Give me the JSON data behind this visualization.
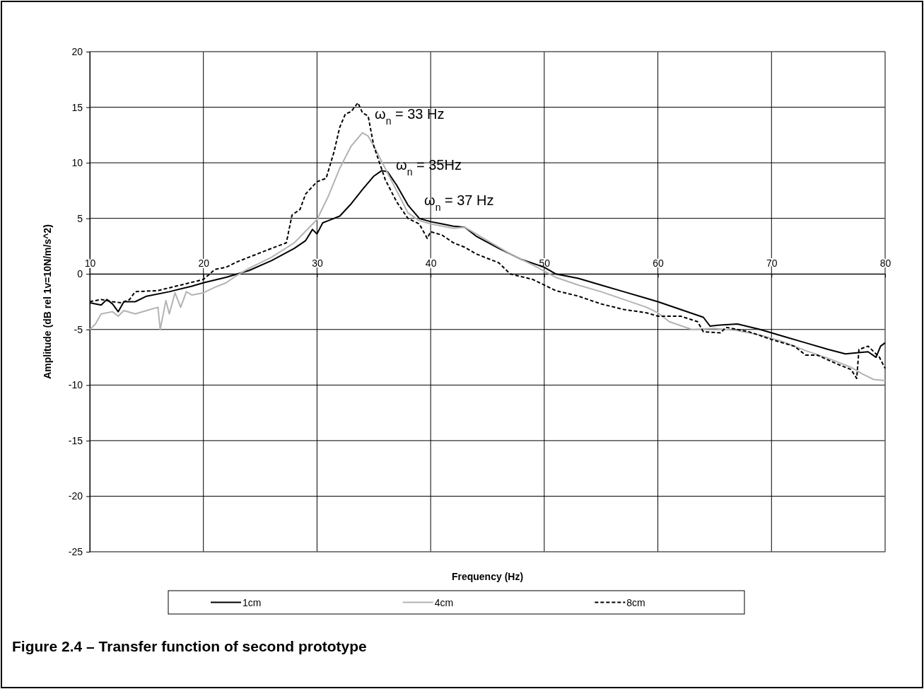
{
  "chart_data": {
    "type": "line",
    "title": "Figure 2.4 – Transfer function of second prototype",
    "xlabel": "Frequency (Hz)",
    "ylabel": "Amplitude (dB rel 1v=10N/m/s^2)",
    "xlim": [
      10,
      80
    ],
    "xticks": [
      10,
      20,
      30,
      40,
      50,
      60,
      70,
      80
    ],
    "ylim": [
      -25,
      20
    ],
    "yticks": [
      -25,
      -20,
      -15,
      -10,
      -5,
      0,
      5,
      10,
      15,
      20
    ],
    "grid": true,
    "legend": "bottom",
    "annotations": [
      "ω$_{n}$ = 33 Hz",
      "ω$_{n}$ = 35Hz",
      "ω$_{n}$ = 37 Hz"
    ],
    "series": [
      {
        "name": "1cm",
        "color": "#000000",
        "line_style": "solid",
        "x": [
          10,
          11,
          11.5,
          12,
          12.5,
          13,
          14,
          15,
          17,
          19,
          20,
          22,
          24,
          26,
          28,
          29,
          29.6,
          30,
          30.5,
          31,
          32,
          33,
          34,
          35,
          35.7,
          36.2,
          37,
          38,
          39,
          40,
          41,
          42,
          43,
          44,
          46,
          48,
          50,
          51,
          53,
          55,
          57,
          59,
          60,
          62,
          64,
          64.6,
          65.5,
          67,
          69,
          71,
          73,
          75,
          76.5,
          78.5,
          79.2,
          79.6,
          80
        ],
        "values": [
          -2.6,
          -2.8,
          -2.3,
          -2.7,
          -3.4,
          -2.5,
          -2.5,
          -2,
          -1.6,
          -1.1,
          -0.8,
          -0.3,
          0.3,
          1.2,
          2.3,
          3,
          4,
          3.6,
          4.6,
          4.8,
          5.2,
          6.3,
          7.6,
          8.8,
          9.3,
          9.2,
          8,
          6.2,
          5,
          4.7,
          4.5,
          4.3,
          4.2,
          3.4,
          2.3,
          1.3,
          0.6,
          0,
          -0.4,
          -1,
          -1.6,
          -2.2,
          -2.5,
          -3.2,
          -3.9,
          -4.7,
          -4.6,
          -4.5,
          -5,
          -5.6,
          -6.2,
          -6.8,
          -7.2,
          -7,
          -7.5,
          -6.5,
          -6.2
        ]
      },
      {
        "name": "4cm",
        "color": "#b3b3b3",
        "line_style": "solid",
        "x": [
          10,
          10.5,
          11,
          12,
          12.5,
          13,
          14,
          15,
          16,
          16.2,
          16.7,
          17,
          17.5,
          18,
          18.5,
          19,
          20,
          21,
          22,
          23,
          24,
          26,
          28,
          30,
          31,
          32,
          33,
          34,
          34.5,
          35,
          36,
          37,
          38,
          39,
          40,
          42,
          43,
          45,
          47,
          49,
          51,
          53,
          55,
          57,
          59,
          60,
          61,
          63,
          65,
          67,
          69,
          71,
          73,
          75,
          77,
          78,
          79,
          80
        ],
        "values": [
          -5,
          -4.5,
          -3.6,
          -3.4,
          -3.8,
          -3.3,
          -3.6,
          -3.3,
          -3,
          -5,
          -2.4,
          -3.6,
          -1.7,
          -3,
          -1.6,
          -1.9,
          -1.7,
          -1.2,
          -0.8,
          -0.1,
          0.5,
          1.5,
          2.8,
          4.9,
          7,
          9.5,
          11.5,
          12.7,
          12.4,
          11.5,
          9.5,
          7.5,
          5.5,
          4.8,
          4.5,
          4.1,
          4.2,
          3,
          1.8,
          0.8,
          -0.3,
          -1,
          -1.6,
          -2.3,
          -3,
          -3.5,
          -4.3,
          -5,
          -4.9,
          -5.1,
          -5.5,
          -6.1,
          -6.9,
          -7.6,
          -8.4,
          -9,
          -9.5,
          -9.6
        ]
      },
      {
        "name": "8cm",
        "color": "#000000",
        "line_style": "dashed",
        "x": [
          10,
          11,
          12,
          12.8,
          13.5,
          14,
          16,
          18,
          20,
          21,
          22,
          23,
          24,
          26,
          27.3,
          27.8,
          28.5,
          29,
          30,
          30.8,
          31.5,
          32,
          32.5,
          33,
          33.6,
          34,
          34.5,
          35,
          36,
          37,
          38,
          39,
          39.7,
          40,
          41,
          42,
          43,
          44,
          46,
          47,
          49,
          51,
          53,
          55,
          57,
          59,
          60,
          62,
          63.5,
          64,
          65.5,
          66,
          68,
          70,
          72,
          73,
          74,
          76,
          77,
          77.5,
          77.7,
          78.5,
          79.5,
          80
        ],
        "values": [
          -2.5,
          -2.3,
          -2.5,
          -2.6,
          -2.3,
          -1.6,
          -1.5,
          -1,
          -0.5,
          0.4,
          0.6,
          1.1,
          1.5,
          2.3,
          2.8,
          5.3,
          5.8,
          7.2,
          8.3,
          8.6,
          11,
          13.2,
          14.4,
          14.6,
          15.4,
          14.5,
          14.2,
          11.5,
          8.5,
          6.5,
          5,
          4.5,
          3.2,
          3.8,
          3.5,
          2.8,
          2.4,
          1.8,
          1,
          0,
          -0.5,
          -1.5,
          -2,
          -2.7,
          -3.2,
          -3.5,
          -3.8,
          -3.8,
          -4.3,
          -5.2,
          -5.3,
          -4.8,
          -5.2,
          -5.9,
          -6.5,
          -7.3,
          -7.3,
          -8.2,
          -8.6,
          -9.4,
          -6.8,
          -6.5,
          -7.5,
          -8.5
        ]
      }
    ]
  }
}
